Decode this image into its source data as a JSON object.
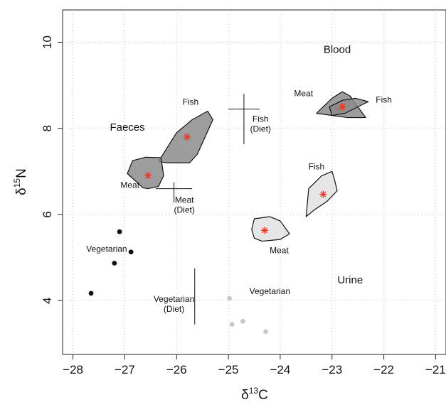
{
  "chart_data": {
    "type": "scatter",
    "title": "",
    "xlabel": {
      "base": "δ",
      "sup": "13",
      "tail": "C"
    },
    "ylabel": {
      "base": "δ",
      "sup": "15",
      "tail": "N"
    },
    "xlim": [
      -28.2,
      -20.8
    ],
    "ylim": [
      2.75,
      10.75
    ],
    "xticks": [
      -28,
      -27,
      -26,
      -25,
      -24,
      -23,
      -22,
      -21
    ],
    "xtick_labels": [
      "−28",
      "−27",
      "−26",
      "−25",
      "−24",
      "−23",
      "−22",
      "−21"
    ],
    "yticks": [
      4,
      6,
      8,
      10
    ],
    "ytick_labels": [
      "4",
      "6",
      "8",
      "10"
    ],
    "grid": true,
    "colors": {
      "dark_fill": "#8c8c8c",
      "light_fill": "#e6e6e6",
      "marker": "#e8392a",
      "faeces_point": "#111111",
      "urine_point": "#c8c8c8"
    },
    "group_labels": [
      {
        "text": "Faeces",
        "x": -26.95,
        "y": 7.95
      },
      {
        "text": "Blood",
        "x": -22.9,
        "y": 9.75
      },
      {
        "text": "Urine",
        "x": -22.65,
        "y": 4.4
      }
    ],
    "polygons": [
      {
        "name": "Faeces Fish",
        "fill": "dark",
        "center": [
          -25.8,
          7.8
        ],
        "points": [
          [
            -26.35,
            7.23
          ],
          [
            -26.0,
            7.9
          ],
          [
            -25.7,
            8.2
          ],
          [
            -25.4,
            8.4
          ],
          [
            -25.3,
            8.2
          ],
          [
            -25.6,
            7.4
          ],
          [
            -25.75,
            7.2
          ],
          [
            -26.2,
            7.2
          ]
        ],
        "label": {
          "text": "Fish",
          "x": -25.73,
          "y": 8.55
        }
      },
      {
        "name": "Faeces Meat",
        "fill": "dark",
        "center": [
          -26.55,
          6.9
        ],
        "points": [
          [
            -26.85,
            7.25
          ],
          [
            -26.6,
            7.33
          ],
          [
            -26.3,
            7.32
          ],
          [
            -26.25,
            6.9
          ],
          [
            -26.35,
            6.65
          ],
          [
            -26.55,
            6.6
          ],
          [
            -26.65,
            6.62
          ],
          [
            -26.95,
            6.95
          ]
        ],
        "label": {
          "text": "Meat",
          "x": -26.9,
          "y": 6.62
        }
      },
      {
        "name": "Urine Fish",
        "fill": "light",
        "center": [
          -23.17,
          6.47
        ],
        "points": [
          [
            -23.5,
            5.95
          ],
          [
            -23.45,
            6.6
          ],
          [
            -23.2,
            6.9
          ],
          [
            -23.0,
            7.0
          ],
          [
            -22.95,
            6.8
          ],
          [
            -22.9,
            6.55
          ],
          [
            -23.1,
            6.3
          ],
          [
            -23.35,
            6.1
          ]
        ],
        "label": {
          "text": "Fish",
          "x": -23.3,
          "y": 7.05
        }
      },
      {
        "name": "Urine Meat",
        "fill": "light",
        "center": [
          -24.3,
          5.63
        ],
        "points": [
          [
            -24.5,
            5.9
          ],
          [
            -24.2,
            5.95
          ],
          [
            -24.0,
            5.85
          ],
          [
            -23.82,
            5.55
          ],
          [
            -24.0,
            5.42
          ],
          [
            -24.35,
            5.38
          ],
          [
            -24.5,
            5.45
          ],
          [
            -24.55,
            5.65
          ]
        ],
        "label": {
          "text": "Meat",
          "x": -24.02,
          "y": 5.1
        }
      },
      {
        "name": "Blood Meat",
        "fill": "dark",
        "center": [
          -22.9,
          8.45
        ],
        "points": [
          [
            -23.3,
            8.35
          ],
          [
            -23.0,
            8.7
          ],
          [
            -22.8,
            8.85
          ],
          [
            -22.65,
            8.75
          ],
          [
            -22.35,
            8.25
          ],
          [
            -22.7,
            8.25
          ]
        ],
        "label": {
          "text": "Meat",
          "x": -23.55,
          "y": 8.75
        }
      },
      {
        "name": "Blood Fish",
        "fill": "dark",
        "center": [
          -22.8,
          8.5
        ],
        "points": [
          [
            -23.05,
            8.5
          ],
          [
            -22.8,
            8.65
          ],
          [
            -22.55,
            8.7
          ],
          [
            -22.3,
            8.62
          ],
          [
            -22.75,
            8.35
          ],
          [
            -23.0,
            8.3
          ]
        ],
        "label": {
          "text": "Fish",
          "x": -22.0,
          "y": 8.6
        }
      }
    ],
    "diet_markers": [
      {
        "name": "Fish (Diet)",
        "x": -24.7,
        "y": 8.45,
        "xerr": 0.3,
        "yerr_up": 0.35,
        "yerr_down": 0.82,
        "label": [
          "Fish",
          "(Diet)"
        ],
        "label_x": -24.38,
        "label_y": 8.15
      },
      {
        "name": "Meat (Diet)",
        "x": -26.05,
        "y": 6.6,
        "xerr": 0.35,
        "yerr_up": 0.15,
        "yerr_down": 0.32,
        "label": [
          "Meat",
          "(Diet)"
        ],
        "label_x": -25.85,
        "label_y": 6.27
      },
      {
        "name": "Vegetarian (Diet)",
        "x": -25.65,
        "y": 4.3,
        "xerr": 0.0,
        "yerr_up": 0.45,
        "yerr_down": 0.85,
        "label": [
          "Vegetarian",
          "(Diet)"
        ],
        "label_x": -26.05,
        "label_y": 3.97
      }
    ],
    "series": [
      {
        "name": "Vegetarian",
        "group": "Faeces",
        "color": "#111111",
        "points": [
          [
            -27.1,
            5.6
          ],
          [
            -26.88,
            5.13
          ],
          [
            -27.2,
            4.87
          ],
          [
            -27.65,
            4.17
          ]
        ],
        "label": {
          "text": "Vegetarian",
          "x": -27.35,
          "y": 5.13
        }
      },
      {
        "name": "Vegetarian",
        "group": "Urine",
        "color": "#c8c8c8",
        "points": [
          [
            -24.98,
            4.05
          ],
          [
            -24.93,
            3.45
          ],
          [
            -24.72,
            3.52
          ],
          [
            -24.28,
            3.28
          ]
        ],
        "label": {
          "text": "Vegetarian",
          "x": -24.2,
          "y": 4.15
        }
      }
    ]
  }
}
